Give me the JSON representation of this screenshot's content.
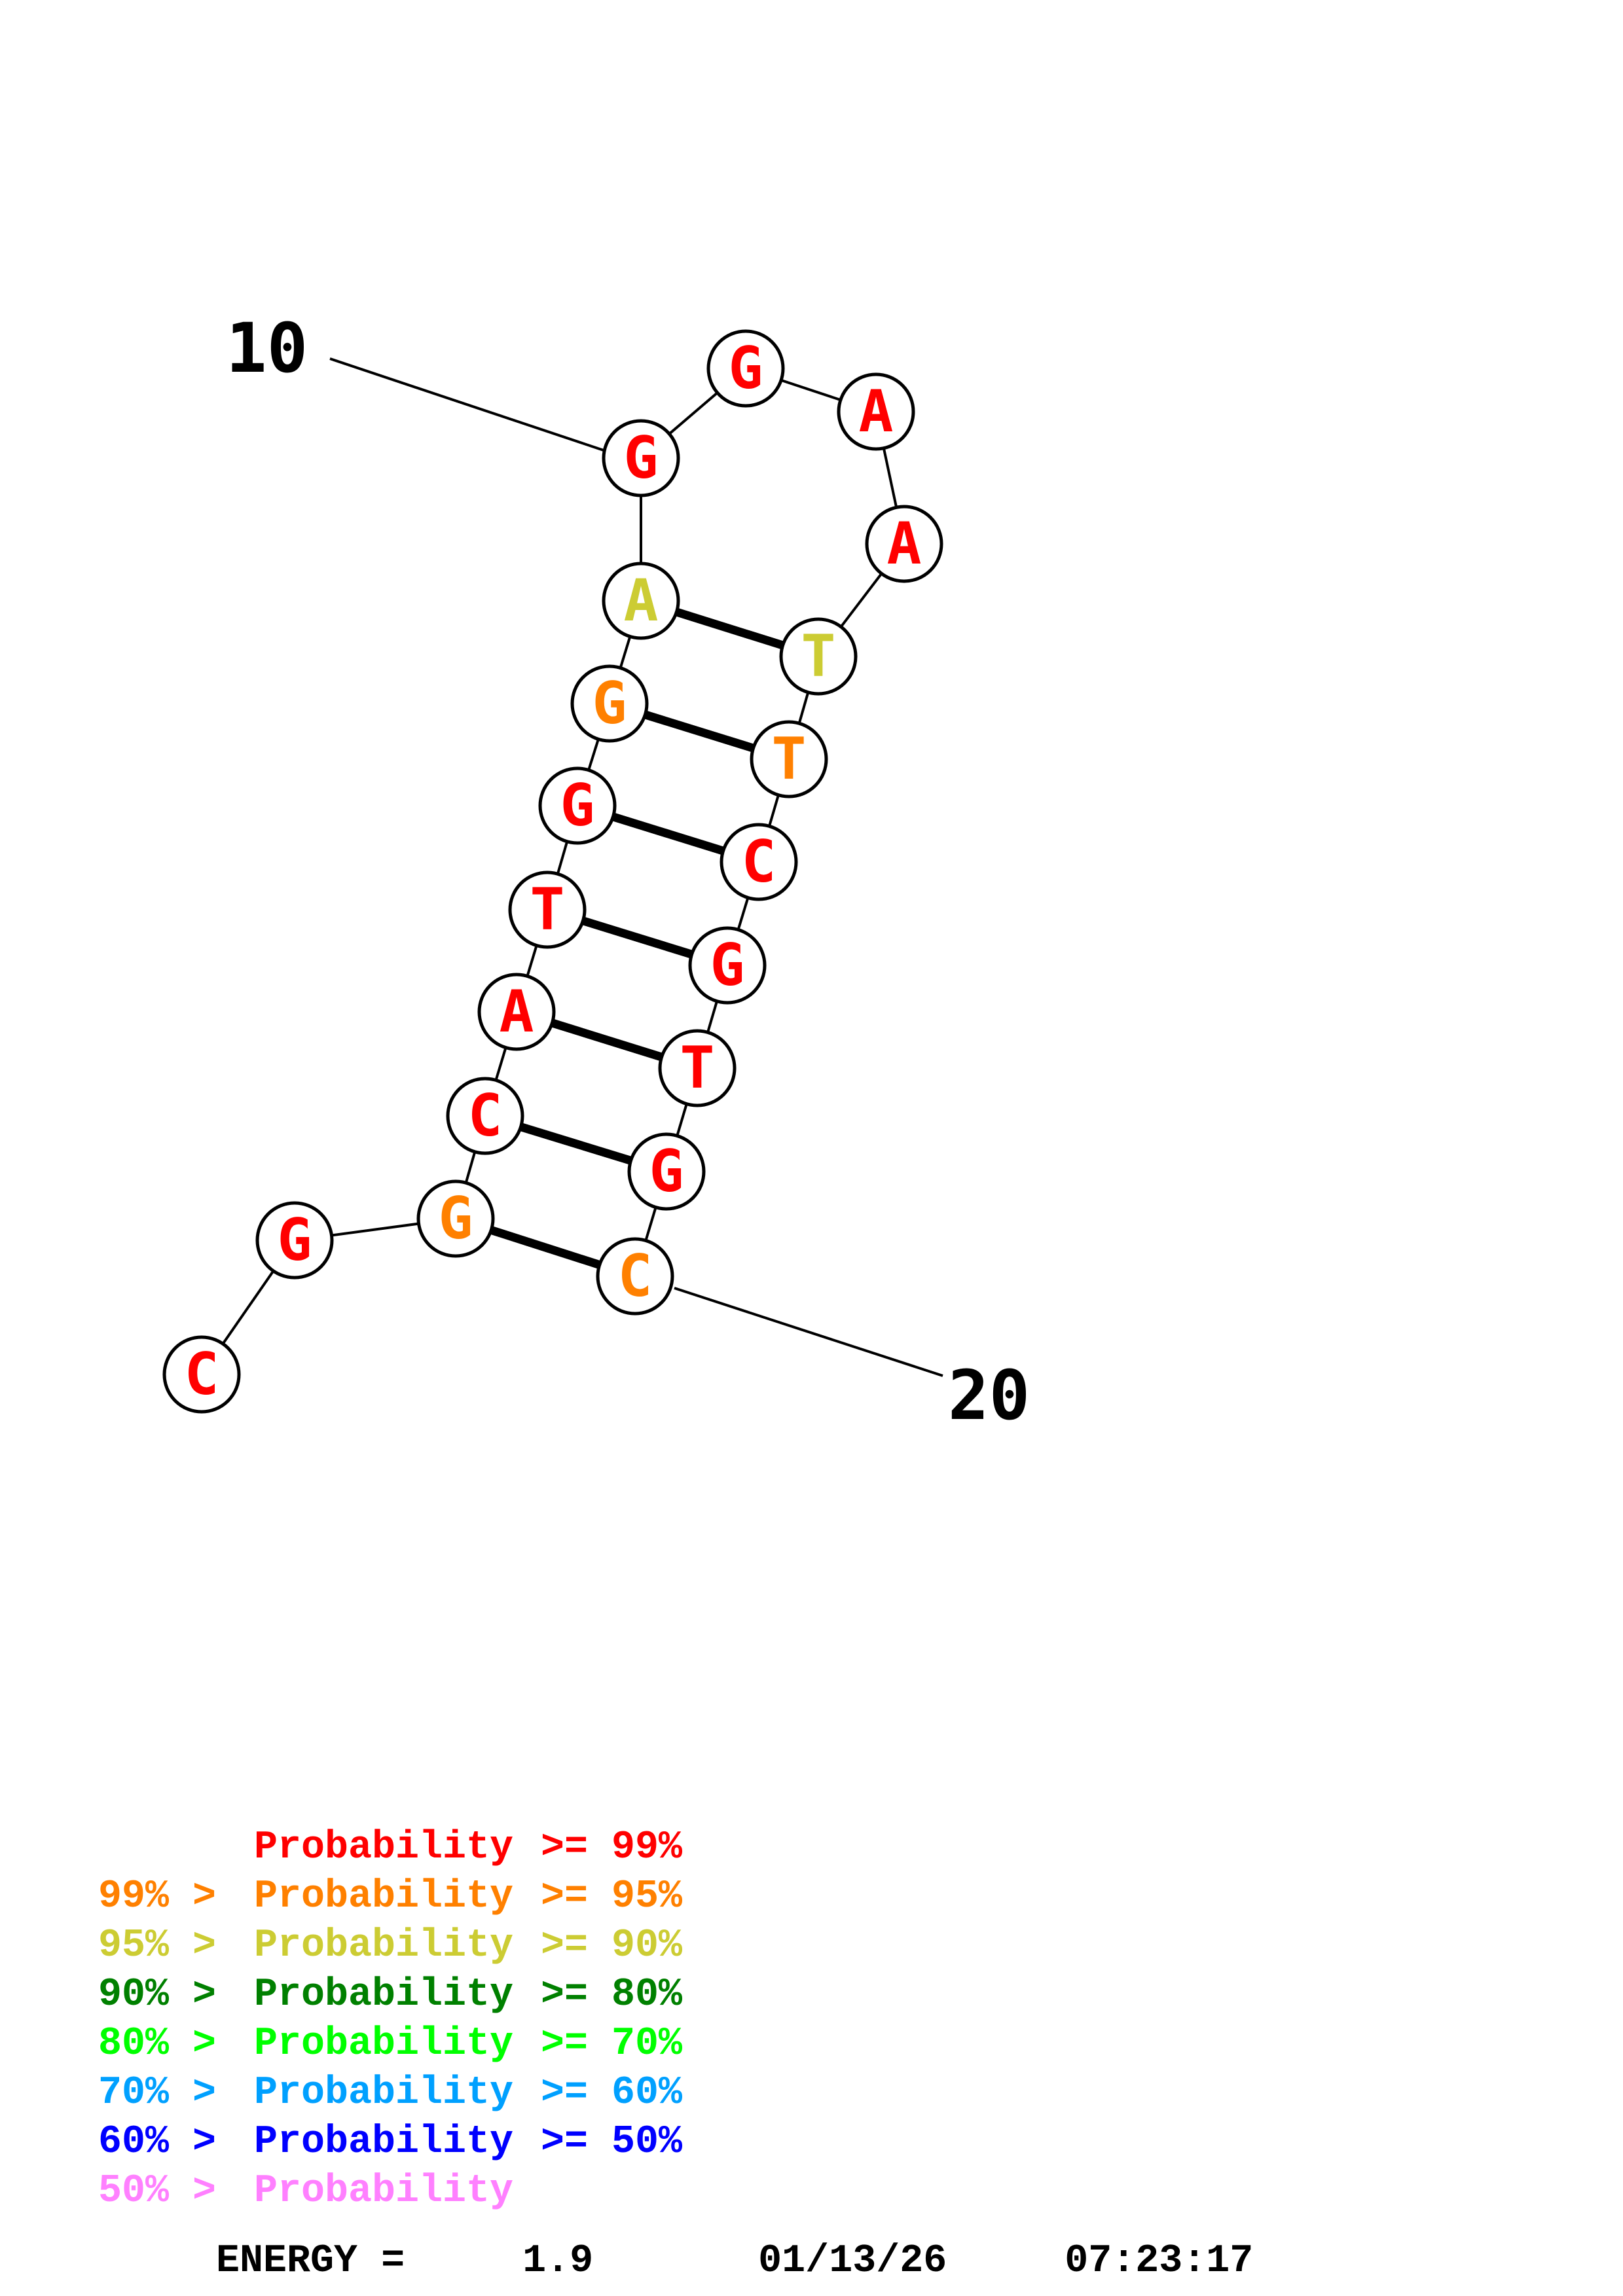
{
  "structure": {
    "colors": {
      "p99": "#ff0000",
      "p95": "#ff8000",
      "p90": "#cccc33",
      "p80": "#008000",
      "p70": "#00ff00",
      "p60": "#00a0ff",
      "p50": "#0000ff",
      "plow": "#ff80ff"
    },
    "nucleotides": [
      {
        "base": "C",
        "prob": "p99"
      },
      {
        "base": "G",
        "prob": "p99"
      },
      {
        "base": "G",
        "prob": "p95"
      },
      {
        "base": "C",
        "prob": "p99"
      },
      {
        "base": "A",
        "prob": "p99"
      },
      {
        "base": "T",
        "prob": "p99"
      },
      {
        "base": "G",
        "prob": "p99"
      },
      {
        "base": "G",
        "prob": "p95"
      },
      {
        "base": "A",
        "prob": "p90"
      },
      {
        "base": "G",
        "prob": "p99"
      },
      {
        "base": "G",
        "prob": "p99"
      },
      {
        "base": "A",
        "prob": "p99"
      },
      {
        "base": "A",
        "prob": "p99"
      },
      {
        "base": "T",
        "prob": "p90"
      },
      {
        "base": "T",
        "prob": "p95"
      },
      {
        "base": "C",
        "prob": "p99"
      },
      {
        "base": "G",
        "prob": "p99"
      },
      {
        "base": "T",
        "prob": "p99"
      },
      {
        "base": "G",
        "prob": "p99"
      },
      {
        "base": "C",
        "prob": "p95"
      }
    ],
    "pairs": [
      [
        3,
        20
      ],
      [
        4,
        19
      ],
      [
        5,
        18
      ],
      [
        6,
        17
      ],
      [
        7,
        16
      ],
      [
        8,
        15
      ],
      [
        9,
        14
      ]
    ],
    "position_labels": [
      {
        "text": "10",
        "index": 10
      },
      {
        "text": "20",
        "index": 20
      }
    ]
  },
  "legend": [
    {
      "prefix": "",
      "label": "Probability",
      "suffix": ">= 99%",
      "color": "p99"
    },
    {
      "prefix": "99% >",
      "label": "Probability",
      "suffix": ">= 95%",
      "color": "p95"
    },
    {
      "prefix": "95% >",
      "label": "Probability",
      "suffix": ">= 90%",
      "color": "p90"
    },
    {
      "prefix": "90% >",
      "label": "Probability",
      "suffix": ">= 80%",
      "color": "p80"
    },
    {
      "prefix": "80% >",
      "label": "Probability",
      "suffix": ">= 70%",
      "color": "p70"
    },
    {
      "prefix": "70% >",
      "label": "Probability",
      "suffix": ">= 60%",
      "color": "p60"
    },
    {
      "prefix": "60% >",
      "label": "Probability",
      "suffix": ">= 50%",
      "color": "p50"
    },
    {
      "prefix": "50% >",
      "label": "Probability",
      "suffix": "",
      "color": "plow"
    }
  ],
  "footer": {
    "energy_label": "ENERGY =",
    "energy_value": "1.9",
    "date": "01/13/26",
    "time": "07:23:17"
  }
}
